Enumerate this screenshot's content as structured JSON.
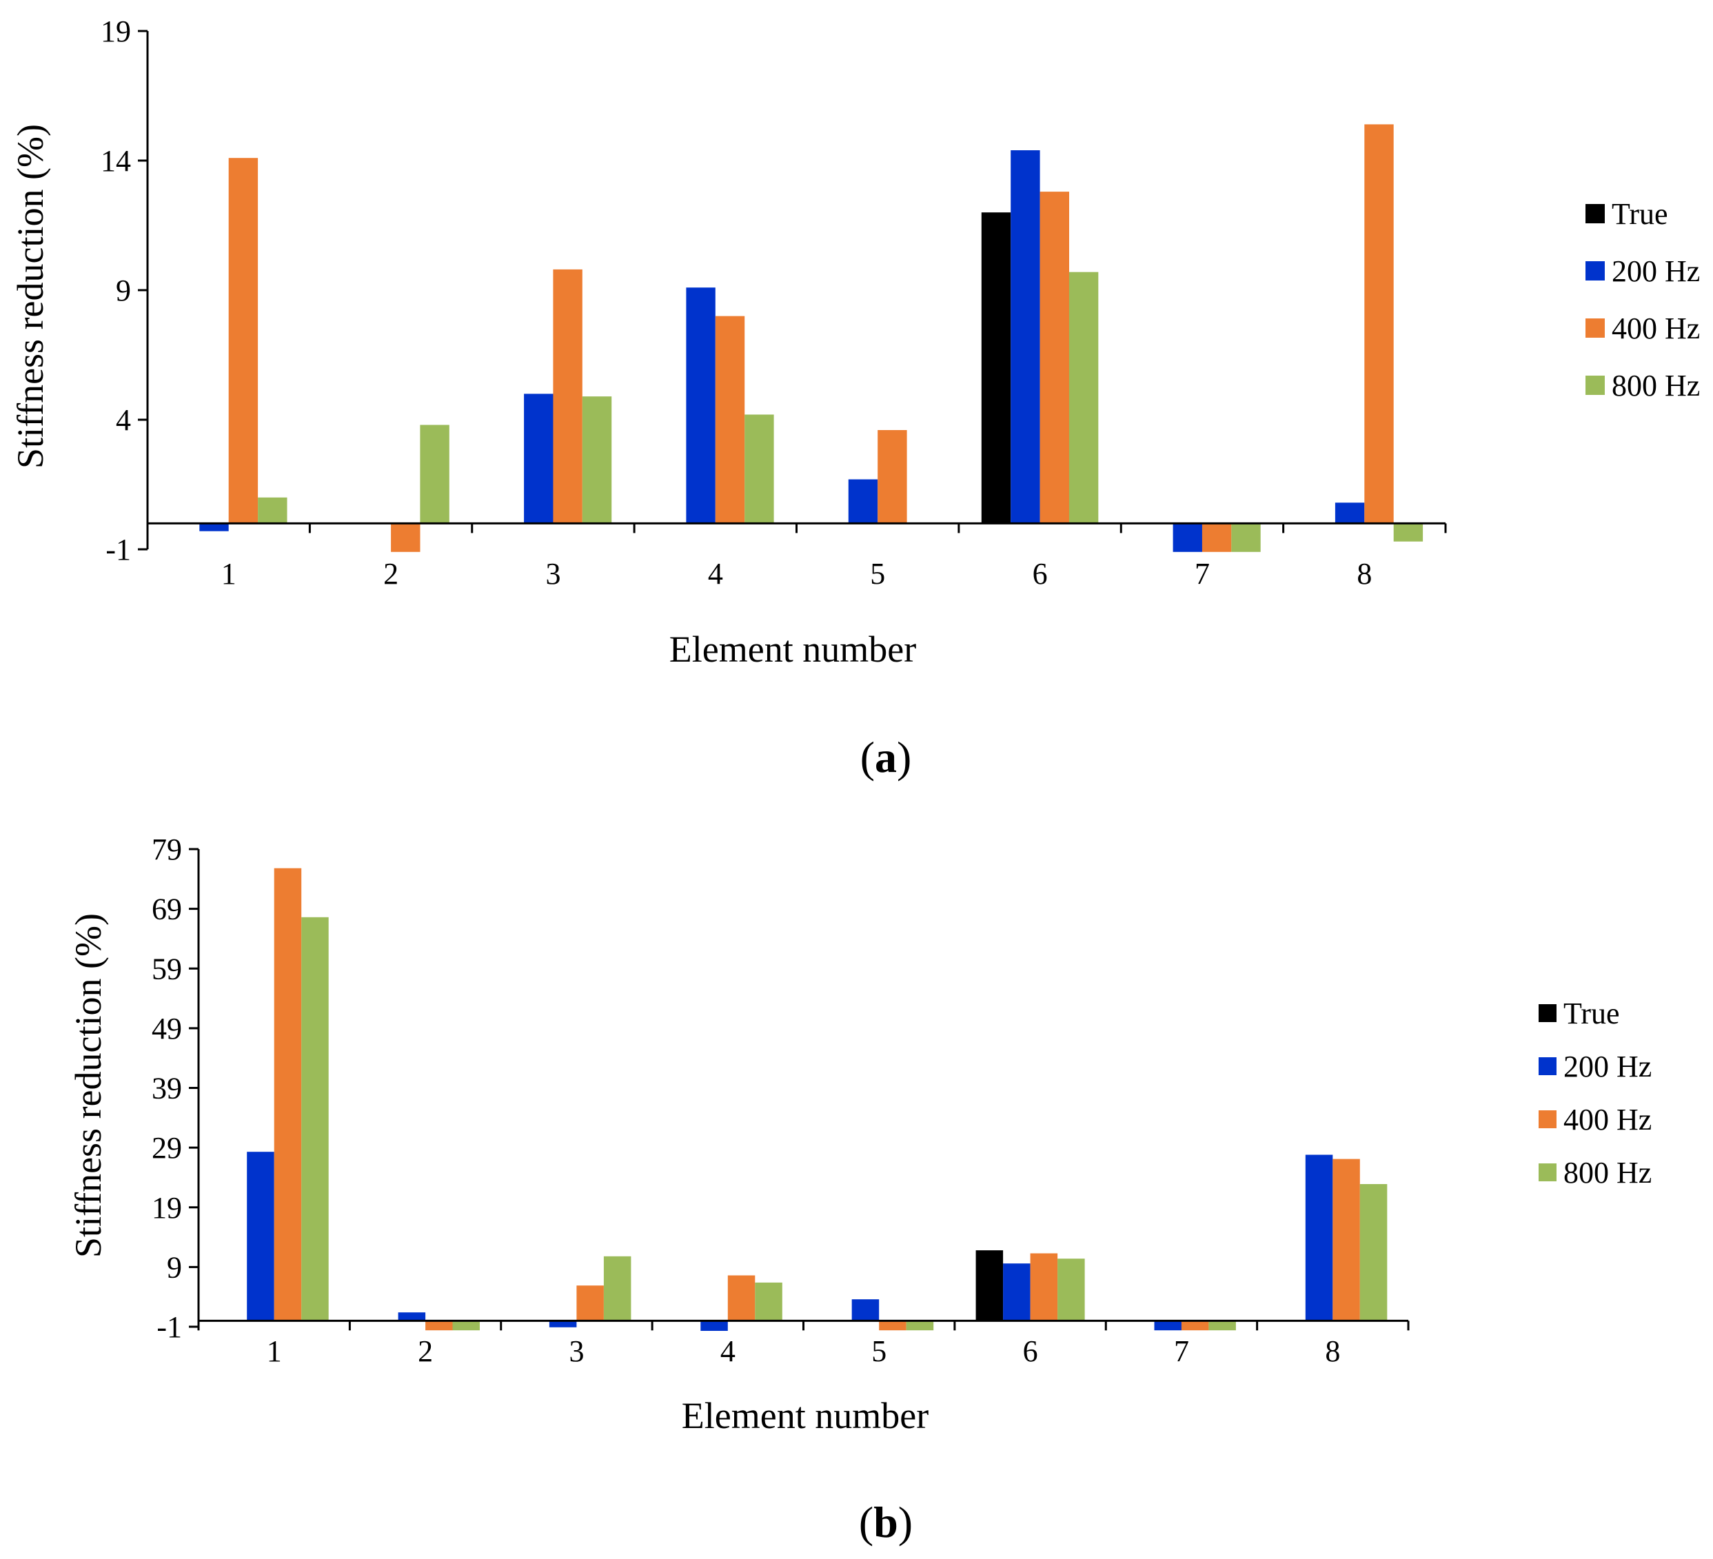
{
  "figure": {
    "panels": [
      {
        "label_open": "(",
        "label_letter": "a",
        "label_close": ")"
      },
      {
        "label_open": "(",
        "label_letter": "b",
        "label_close": ")"
      }
    ]
  },
  "chart_data": [
    {
      "type": "bar",
      "panel": "a",
      "title": "",
      "xlabel": "Element number",
      "ylabel": "Stiffness reduction (%)",
      "categories": [
        "1",
        "2",
        "3",
        "4",
        "5",
        "6",
        "7",
        "8"
      ],
      "ylim": [
        -1,
        19
      ],
      "yticks": [
        -1,
        4,
        9,
        14,
        19
      ],
      "legend_position": "right",
      "series": [
        {
          "name": "True",
          "color": "#000000",
          "values": [
            0,
            0,
            0,
            0,
            0,
            12,
            0,
            0
          ]
        },
        {
          "name": "200 Hz",
          "color": "#0033CC",
          "values": [
            -0.3,
            0,
            5,
            9.1,
            1.7,
            14.4,
            -1.1,
            0.8
          ]
        },
        {
          "name": "400 Hz",
          "color": "#ED7D31",
          "values": [
            14.1,
            -1.1,
            9.8,
            8,
            3.6,
            12.8,
            -1.1,
            15.4
          ]
        },
        {
          "name": "800 Hz",
          "color": "#9BBB59",
          "values": [
            1,
            3.8,
            4.9,
            4.2,
            0,
            9.7,
            -1.1,
            -0.7
          ]
        }
      ]
    },
    {
      "type": "bar",
      "panel": "b",
      "title": "",
      "xlabel": "Element number",
      "ylabel": "Stiffness reduction (%)",
      "categories": [
        "1",
        "2",
        "3",
        "4",
        "5",
        "6",
        "7",
        "8"
      ],
      "ylim": [
        -1,
        79
      ],
      "yticks": [
        -1,
        9,
        19,
        29,
        39,
        49,
        59,
        69,
        79
      ],
      "legend_position": "right",
      "series": [
        {
          "name": "True",
          "color": "#000000",
          "values": [
            0,
            0,
            0,
            0,
            0,
            11.8,
            0,
            0
          ]
        },
        {
          "name": "200 Hz",
          "color": "#0033CC",
          "values": [
            28.3,
            1.4,
            -1.1,
            -1.7,
            3.6,
            9.6,
            -1.6,
            27.8
          ]
        },
        {
          "name": "400 Hz",
          "color": "#ED7D31",
          "values": [
            75.8,
            -1.6,
            5.9,
            7.6,
            -1.6,
            11.3,
            -1.6,
            27.1
          ]
        },
        {
          "name": "800 Hz",
          "color": "#9BBB59",
          "values": [
            67.6,
            -1.6,
            10.8,
            6.4,
            -1.6,
            10.4,
            -1.6,
            22.9
          ]
        }
      ]
    }
  ]
}
